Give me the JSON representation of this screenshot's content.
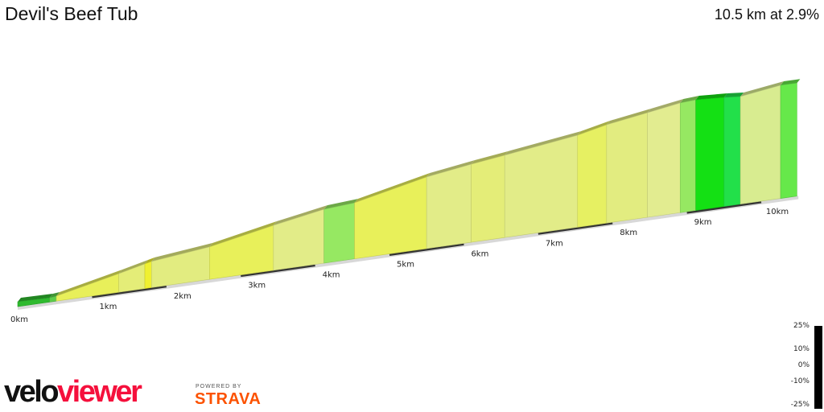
{
  "header": {
    "title": "Devil's Beef Tub",
    "summary": "10.5 km at 2.9%"
  },
  "chart_data": {
    "type": "area",
    "title": "Devil's Beef Tub",
    "xlabel": "",
    "ylabel": "",
    "x_unit": "km",
    "xlim": [
      0,
      10.5
    ],
    "x_ticks": [
      "0km",
      "1km",
      "2km",
      "3km",
      "4km",
      "5km",
      "6km",
      "7km",
      "8km",
      "9km",
      "10km"
    ],
    "segments": [
      {
        "start": 0.0,
        "end": 0.43,
        "color": "#2fba2f"
      },
      {
        "start": 0.43,
        "end": 0.52,
        "color": "#5ccc4a"
      },
      {
        "start": 0.52,
        "end": 1.36,
        "color": "#e8ef5a"
      },
      {
        "start": 1.36,
        "end": 1.71,
        "color": "#e4ed78"
      },
      {
        "start": 1.71,
        "end": 1.8,
        "color": "#eff030"
      },
      {
        "start": 1.8,
        "end": 2.58,
        "color": "#e2ec80"
      },
      {
        "start": 2.58,
        "end": 3.44,
        "color": "#e8f05a"
      },
      {
        "start": 3.44,
        "end": 4.12,
        "color": "#e2ec88"
      },
      {
        "start": 4.12,
        "end": 4.53,
        "color": "#96e862"
      },
      {
        "start": 4.53,
        "end": 5.5,
        "color": "#e8f05a"
      },
      {
        "start": 5.5,
        "end": 6.1,
        "color": "#e2ec88"
      },
      {
        "start": 6.1,
        "end": 6.55,
        "color": "#e4ed78"
      },
      {
        "start": 6.55,
        "end": 7.53,
        "color": "#e2ec88"
      },
      {
        "start": 7.53,
        "end": 7.92,
        "color": "#e6f062"
      },
      {
        "start": 7.92,
        "end": 8.47,
        "color": "#e2ec80"
      },
      {
        "start": 8.47,
        "end": 8.91,
        "color": "#e2ec90"
      },
      {
        "start": 8.91,
        "end": 9.12,
        "color": "#96e862"
      },
      {
        "start": 9.12,
        "end": 9.5,
        "color": "#14e014"
      },
      {
        "start": 9.5,
        "end": 9.72,
        "color": "#22e04a"
      },
      {
        "start": 9.72,
        "end": 10.26,
        "color": "#d8ec90"
      },
      {
        "start": 10.26,
        "end": 10.48,
        "color": "#66e84a"
      }
    ],
    "gradient_legend": [
      "25%",
      "10%",
      "0%",
      "-10%",
      "-25%"
    ]
  },
  "branding": {
    "logo_a": "velo",
    "logo_b": "viewer",
    "powered_by": "POWERED BY",
    "strava": "STRAVA"
  }
}
